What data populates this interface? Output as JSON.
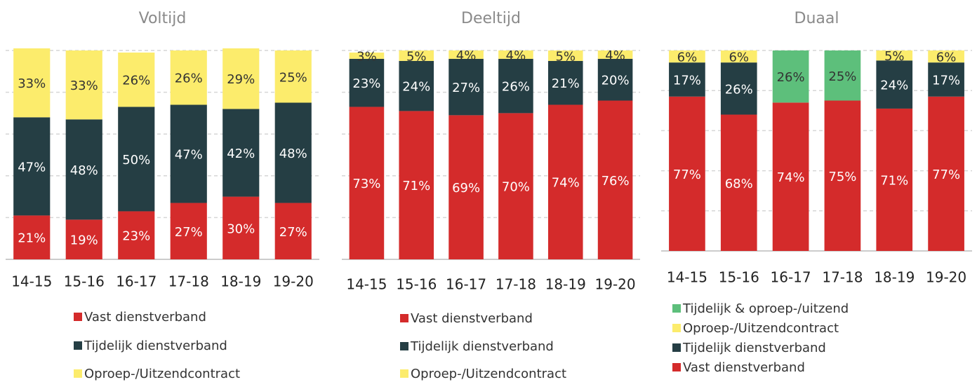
{
  "chart_data": [
    {
      "type": "bar",
      "stacked": true,
      "title": "Voltijd",
      "categories": [
        "14-15",
        "15-16",
        "16-17",
        "17-18",
        "18-19",
        "19-20"
      ],
      "series": [
        {
          "name": "Vast dienstverband",
          "color": "#d42b2b",
          "values": [
            21,
            19,
            23,
            27,
            30,
            27
          ],
          "value_labels": [
            "21%",
            "19%",
            "23%",
            "27%",
            "30%",
            "27%"
          ]
        },
        {
          "name": "Tijdelijk dienstverband",
          "color": "#253e44",
          "values": [
            47,
            48,
            50,
            47,
            42,
            48
          ],
          "value_labels": [
            "47%",
            "48%",
            "50%",
            "47%",
            "42%",
            "48%"
          ]
        },
        {
          "name": "Oproep-/Uitzendcontract",
          "color": "#fcec6c",
          "values": [
            33,
            33,
            26,
            26,
            29,
            25
          ],
          "value_labels": [
            "33%",
            "33%",
            "26%",
            "26%",
            "29%",
            "25%"
          ]
        }
      ],
      "ylim": [
        0,
        100
      ],
      "yticks": [
        0,
        20,
        40,
        60,
        80,
        100
      ],
      "grid": true
    },
    {
      "type": "bar",
      "stacked": true,
      "title": "Deeltijd",
      "categories": [
        "14-15",
        "15-16",
        "16-17",
        "17-18",
        "18-19",
        "19-20"
      ],
      "series": [
        {
          "name": "Vast dienstverband",
          "color": "#d42b2b",
          "values": [
            73,
            71,
            69,
            70,
            74,
            76
          ],
          "value_labels": [
            "73%",
            "71%",
            "69%",
            "70%",
            "74%",
            "76%"
          ]
        },
        {
          "name": "Tijdelijk dienstverband",
          "color": "#253e44",
          "values": [
            23,
            24,
            27,
            26,
            21,
            20
          ],
          "value_labels": [
            "23%",
            "24%",
            "27%",
            "26%",
            "21%",
            "20%"
          ]
        },
        {
          "name": "Oproep-/Uitzendcontract",
          "color": "#fcec6c",
          "values": [
            3,
            5,
            4,
            4,
            5,
            4
          ],
          "value_labels": [
            "3%",
            "5%",
            "4%",
            "4%",
            "5%",
            "4%"
          ]
        }
      ],
      "ylim": [
        0,
        100
      ],
      "yticks": [
        0,
        20,
        40,
        60,
        80,
        100
      ],
      "grid": true
    },
    {
      "type": "bar",
      "stacked": true,
      "title": "Duaal",
      "categories": [
        "14-15",
        "15-16",
        "16-17",
        "17-18",
        "18-19",
        "19-20"
      ],
      "series": [
        {
          "name": "Vast dienstverband",
          "color": "#d42b2b",
          "values": [
            77,
            68,
            74,
            75,
            71,
            77
          ],
          "value_labels": [
            "77%",
            "68%",
            "74%",
            "75%",
            "71%",
            "77%"
          ]
        },
        {
          "name": "Tijdelijk dienstverband",
          "color": "#253e44",
          "values": [
            17,
            26,
            null,
            null,
            24,
            17
          ],
          "value_labels": [
            "17%",
            "26%",
            null,
            null,
            "24%",
            "17%"
          ]
        },
        {
          "name": "Oproep-/Uitzendcontract",
          "color": "#fcec6c",
          "values": [
            6,
            6,
            null,
            null,
            5,
            6
          ],
          "value_labels": [
            "6%",
            "6%",
            null,
            null,
            "5%",
            "6%"
          ]
        },
        {
          "name": "Tijdelijk & oproep-/uitzend",
          "color": "#5dbf7b",
          "values": [
            null,
            null,
            26,
            25,
            null,
            null
          ],
          "value_labels": [
            null,
            null,
            "26%",
            "25%",
            null,
            null
          ]
        }
      ],
      "ylim": [
        0,
        100
      ],
      "yticks": [
        0,
        20,
        40,
        60,
        80,
        100
      ],
      "grid": true
    }
  ]
}
